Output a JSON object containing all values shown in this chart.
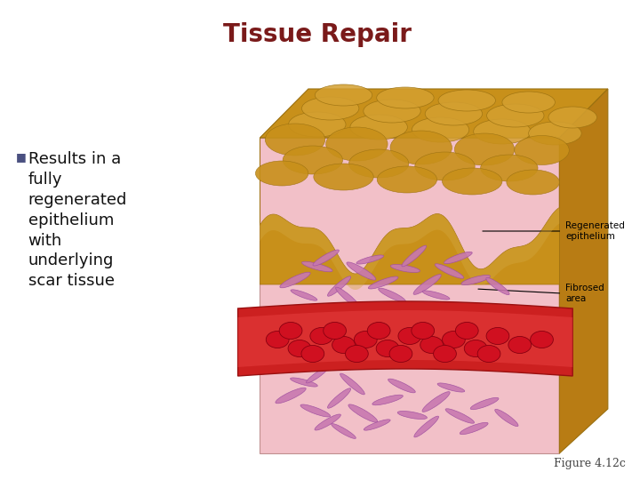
{
  "title": "Tissue Repair",
  "title_color": "#7a1a1a",
  "title_fontsize": 20,
  "bullet_symbol": "■",
  "bullet_color": "#4a5080",
  "bullet_text": "Results in a\nfully\nregenerated\nepithelium\nwith\nunderlying\nscar tissue",
  "bullet_fontsize": 13,
  "label1": "Regenerated\nepithelium",
  "label2": "Fibrosed\narea",
  "figure_caption": "Figure 4.12c",
  "figure_caption_fontsize": 9,
  "bg_color": "#ffffff",
  "skin_golden": "#c8901a",
  "skin_golden_light": "#d4a030",
  "skin_golden_dark": "#a07010",
  "skin_pink": "#f2c0c8",
  "skin_pink_mid": "#f0b0bc",
  "vessel_red": "#cc2020",
  "vessel_light": "#e85050",
  "rbc_red": "#d01020",
  "spindle_color": "#c878b0",
  "spindle_edge": "#a050a0"
}
